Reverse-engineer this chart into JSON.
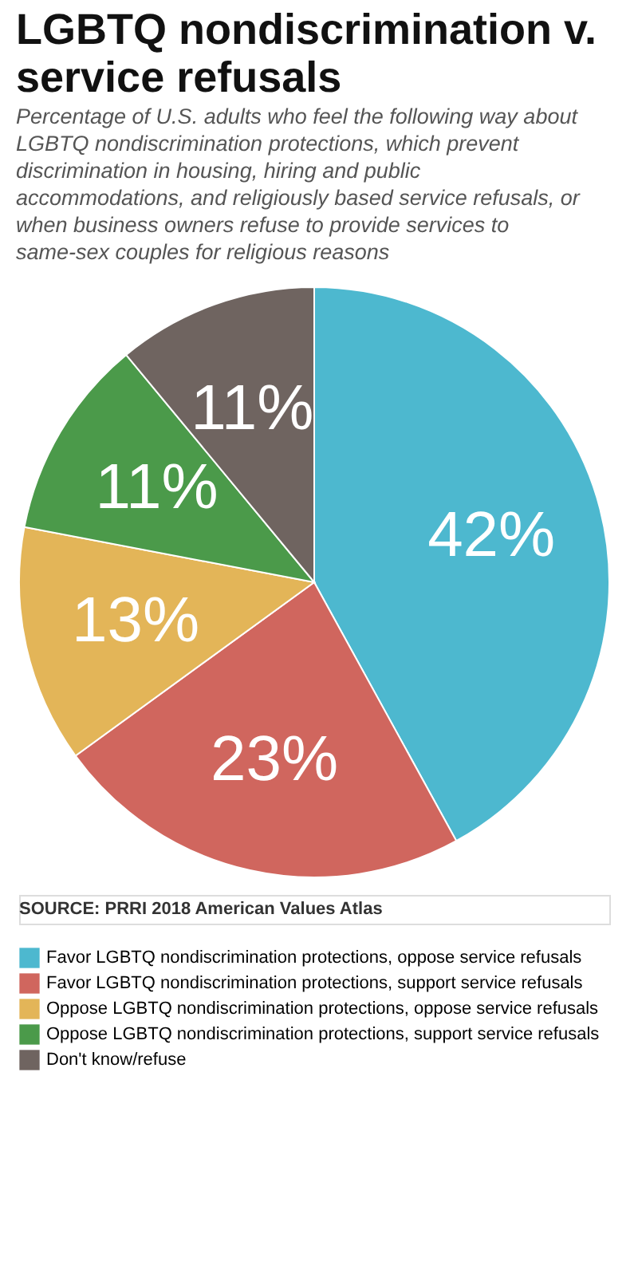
{
  "chart_data": {
    "type": "pie",
    "title": "LGBTQ nondiscrimination v. service refusals",
    "subtitle": "Percentage of U.S. adults who feel the following way about LGBTQ nondiscrimination protections, which prevent discrimination in housing, hiring and public accommodations, and religiously based service refusals, or when business owners refuse to provide services to same-sex couples for religious reasons",
    "categories": [
      "Favor LGBTQ nondiscrimination protections, oppose service refusals",
      "Favor LGBTQ nondiscrimination protections, support service refusals",
      "Oppose LGBTQ nondiscrimination protections, oppose service refusals",
      "Oppose LGBTQ nondiscrimination protections, support service refusals",
      "Don't know/refuse"
    ],
    "values": [
      42,
      23,
      13,
      11,
      11
    ],
    "value_labels": [
      "42%",
      "23%",
      "13%",
      "11%",
      "11%"
    ],
    "colors": [
      "#4db8cf",
      "#d0665e",
      "#e3b558",
      "#4b9a4a",
      "#6f6460"
    ],
    "legend": "bottom",
    "annotations": [
      "SOURCE: PRRI 2018 American Values Atlas"
    ]
  }
}
